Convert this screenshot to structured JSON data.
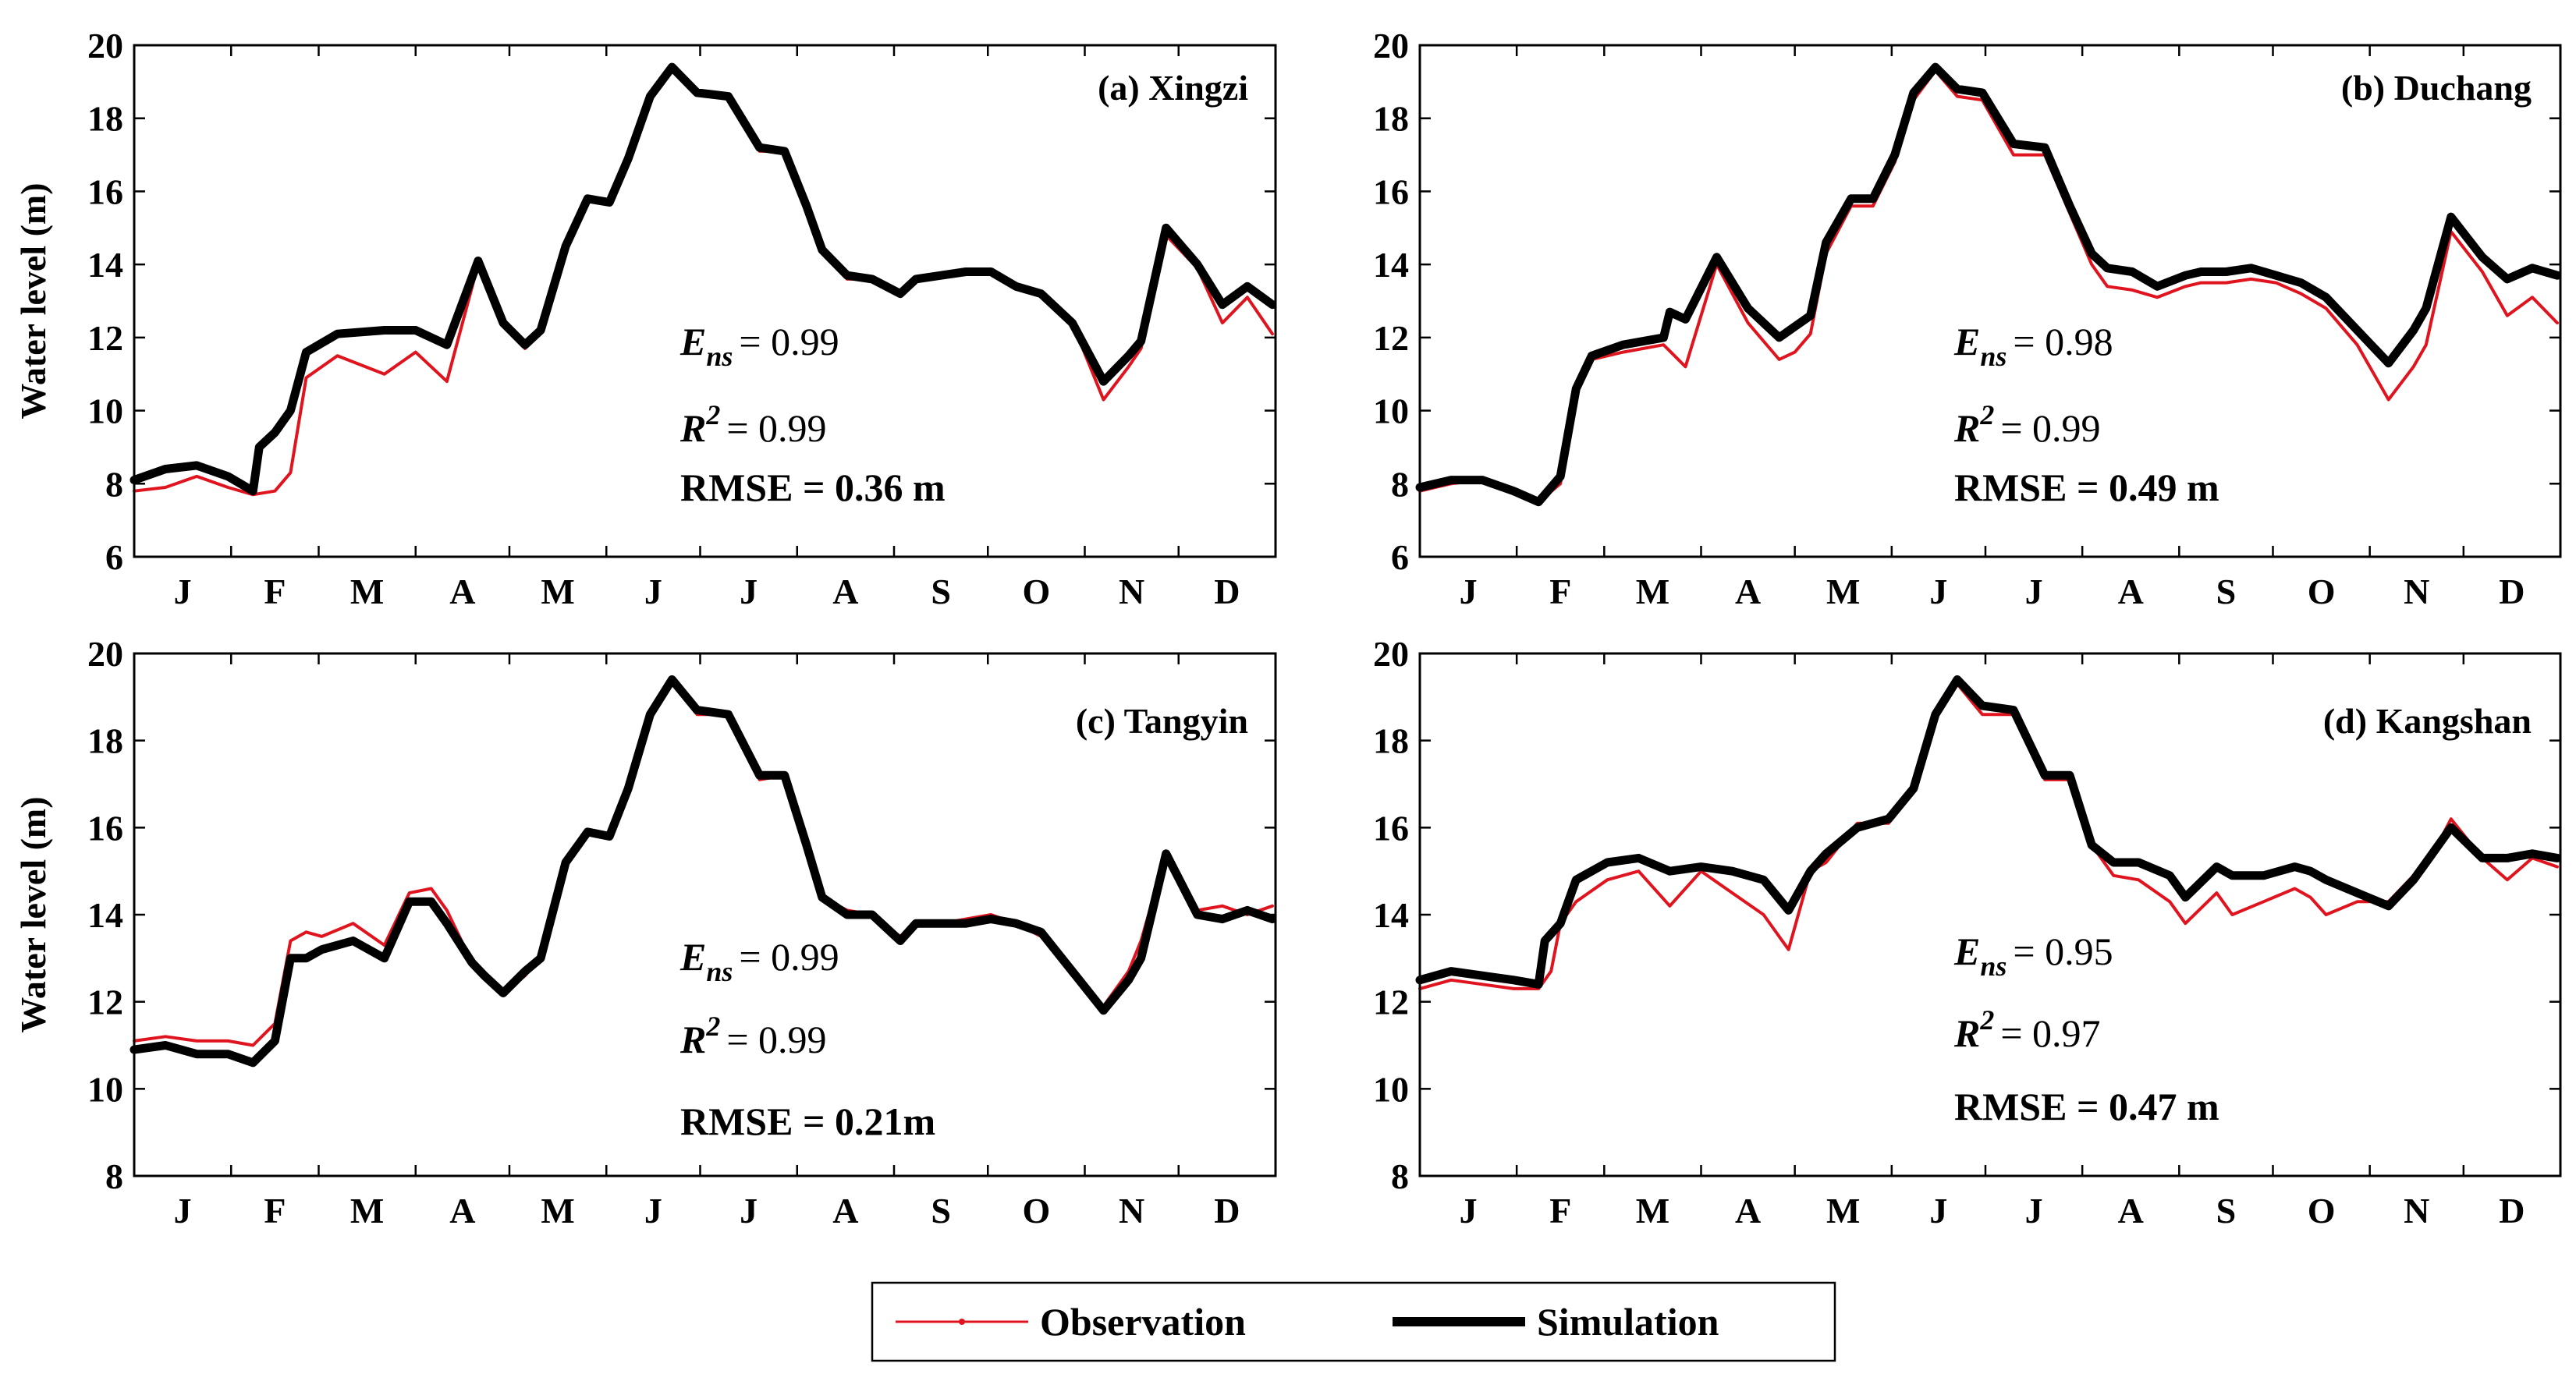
{
  "chart_data": [
    {
      "type": "line",
      "title": "(a) Xingzi",
      "ylabel": "Water level (m)",
      "ylim": [
        6,
        20
      ],
      "yticks": [
        6,
        8,
        10,
        12,
        14,
        16,
        18,
        20
      ],
      "months": [
        "J",
        "F",
        "M",
        "A",
        "M",
        "J",
        "J",
        "A",
        "S",
        "O",
        "N",
        "D"
      ],
      "stats": {
        "ens_symbol": "E",
        "ens_sub": "ns",
        "ens_value": "= 0.99",
        "r2_symbol": "R",
        "r2_sup": "2",
        "r2_value": "= 0.99",
        "rmse": "RMSE = 0.36 m"
      },
      "series": [
        {
          "name": "Observation",
          "day": [
            0,
            10,
            20,
            30,
            38,
            45,
            50,
            55,
            65,
            80,
            90,
            100,
            110,
            118,
            125,
            130,
            138,
            145,
            152,
            158,
            165,
            172,
            180,
            190,
            200,
            208,
            215,
            220,
            228,
            236,
            245,
            250,
            258,
            266,
            274,
            282,
            290,
            300,
            310,
            318,
            322,
            330,
            340,
            348,
            356,
            364
          ],
          "values": [
            7.8,
            7.9,
            8.2,
            7.9,
            7.7,
            7.8,
            8.3,
            10.9,
            11.5,
            11.0,
            11.6,
            10.8,
            14.0,
            12.5,
            11.7,
            12.2,
            14.5,
            15.8,
            15.7,
            16.9,
            18.6,
            19.4,
            18.7,
            18.6,
            17.1,
            17.1,
            15.6,
            14.4,
            13.6,
            13.6,
            13.2,
            13.6,
            13.7,
            13.8,
            13.8,
            13.4,
            13.2,
            12.4,
            10.3,
            11.2,
            11.7,
            14.8,
            13.9,
            12.4,
            13.1,
            12.1
          ]
        },
        {
          "name": "Simulation",
          "day": [
            0,
            10,
            20,
            30,
            38,
            40,
            45,
            50,
            55,
            65,
            80,
            90,
            100,
            110,
            118,
            125,
            130,
            138,
            145,
            152,
            158,
            165,
            172,
            180,
            190,
            200,
            208,
            215,
            220,
            228,
            236,
            245,
            250,
            258,
            266,
            274,
            282,
            290,
            300,
            310,
            318,
            322,
            330,
            340,
            348,
            356,
            364
          ],
          "values": [
            8.1,
            8.4,
            8.5,
            8.2,
            7.8,
            9.0,
            9.4,
            10.0,
            11.6,
            12.1,
            12.2,
            12.2,
            11.8,
            14.1,
            12.4,
            11.8,
            12.2,
            14.5,
            15.8,
            15.7,
            16.9,
            18.6,
            19.4,
            18.7,
            18.6,
            17.2,
            17.1,
            15.6,
            14.4,
            13.7,
            13.6,
            13.2,
            13.6,
            13.7,
            13.8,
            13.8,
            13.4,
            13.2,
            12.4,
            10.8,
            11.5,
            11.9,
            15.0,
            14.0,
            12.9,
            13.4,
            12.9
          ]
        }
      ]
    },
    {
      "type": "line",
      "title": "(b) Duchang",
      "ylabel": "",
      "ylim": [
        6,
        20
      ],
      "yticks": [
        6,
        8,
        10,
        12,
        14,
        16,
        18,
        20
      ],
      "months": [
        "J",
        "F",
        "M",
        "A",
        "M",
        "J",
        "J",
        "A",
        "S",
        "O",
        "N",
        "D"
      ],
      "stats": {
        "ens_symbol": "E",
        "ens_sub": "ns",
        "ens_value": "= 0.98",
        "r2_symbol": "R",
        "r2_sup": "2",
        "r2_value": "= 0.99",
        "rmse": "RMSE = 0.49 m"
      },
      "series": [
        {
          "name": "Observation",
          "day": [
            0,
            10,
            20,
            30,
            38,
            45,
            50,
            55,
            65,
            78,
            85,
            95,
            105,
            115,
            120,
            125,
            130,
            138,
            145,
            152,
            158,
            165,
            172,
            180,
            190,
            200,
            208,
            215,
            220,
            228,
            236,
            245,
            250,
            258,
            266,
            274,
            282,
            290,
            300,
            310,
            318,
            322,
            330,
            340,
            348,
            356,
            364
          ],
          "values": [
            7.8,
            8.0,
            8.1,
            7.8,
            7.5,
            8.0,
            10.5,
            11.4,
            11.6,
            11.8,
            11.2,
            14.0,
            12.4,
            11.4,
            11.6,
            12.1,
            14.3,
            15.6,
            15.6,
            16.8,
            18.5,
            19.3,
            18.6,
            18.5,
            17.0,
            17.0,
            15.4,
            14.0,
            13.4,
            13.3,
            13.1,
            13.4,
            13.5,
            13.5,
            13.6,
            13.5,
            13.2,
            12.8,
            11.8,
            10.3,
            11.2,
            11.8,
            14.9,
            13.8,
            12.6,
            13.1,
            12.4
          ]
        },
        {
          "name": "Simulation",
          "day": [
            0,
            10,
            20,
            30,
            38,
            45,
            50,
            55,
            65,
            78,
            80,
            85,
            95,
            105,
            115,
            120,
            125,
            130,
            138,
            145,
            152,
            158,
            165,
            172,
            180,
            190,
            200,
            208,
            215,
            220,
            228,
            236,
            245,
            250,
            258,
            266,
            274,
            282,
            290,
            300,
            310,
            318,
            322,
            330,
            340,
            348,
            356,
            364
          ],
          "values": [
            7.9,
            8.1,
            8.1,
            7.8,
            7.5,
            8.2,
            10.6,
            11.5,
            11.8,
            12.0,
            12.7,
            12.5,
            14.2,
            12.8,
            12.0,
            12.3,
            12.6,
            14.6,
            15.8,
            15.8,
            17.0,
            18.7,
            19.4,
            18.8,
            18.7,
            17.3,
            17.2,
            15.6,
            14.3,
            13.9,
            13.8,
            13.4,
            13.7,
            13.8,
            13.8,
            13.9,
            13.7,
            13.5,
            13.1,
            12.2,
            11.3,
            12.2,
            12.8,
            15.3,
            14.2,
            13.6,
            13.9,
            13.7
          ]
        }
      ]
    },
    {
      "type": "line",
      "title": "(c) Tangyin",
      "ylabel": "Water level (m)",
      "ylim": [
        8,
        20
      ],
      "yticks": [
        8,
        10,
        12,
        14,
        16,
        18,
        20
      ],
      "months": [
        "J",
        "F",
        "M",
        "A",
        "M",
        "J",
        "J",
        "A",
        "S",
        "O",
        "N",
        "D"
      ],
      "stats": {
        "ens_symbol": "E",
        "ens_sub": "ns",
        "ens_value": "= 0.99",
        "r2_symbol": "R",
        "r2_sup": "2",
        "r2_value": "= 0.99",
        "rmse": "RMSE = 0.21m"
      },
      "series": [
        {
          "name": "Observation",
          "day": [
            0,
            10,
            20,
            30,
            38,
            45,
            50,
            55,
            60,
            70,
            80,
            88,
            95,
            100,
            108,
            112,
            118,
            125,
            130,
            138,
            145,
            152,
            158,
            165,
            172,
            180,
            190,
            200,
            208,
            215,
            220,
            228,
            236,
            245,
            250,
            258,
            266,
            274,
            282,
            290,
            300,
            310,
            318,
            322,
            330,
            340,
            348,
            356,
            364
          ],
          "values": [
            11.1,
            11.2,
            11.1,
            11.1,
            11.0,
            11.5,
            13.4,
            13.6,
            13.5,
            13.8,
            13.3,
            14.5,
            14.6,
            14.1,
            12.9,
            12.6,
            12.2,
            12.6,
            13.0,
            15.3,
            15.9,
            15.8,
            16.9,
            18.6,
            19.4,
            18.6,
            18.6,
            17.1,
            17.2,
            15.6,
            14.4,
            14.1,
            14.0,
            13.5,
            13.8,
            13.8,
            13.9,
            14.0,
            13.8,
            13.5,
            12.6,
            11.9,
            12.7,
            13.4,
            15.4,
            14.1,
            14.2,
            14.0,
            14.2
          ]
        },
        {
          "name": "Simulation",
          "day": [
            0,
            10,
            20,
            30,
            38,
            45,
            50,
            55,
            60,
            70,
            80,
            88,
            95,
            100,
            108,
            112,
            118,
            125,
            130,
            138,
            145,
            152,
            158,
            165,
            172,
            180,
            190,
            200,
            208,
            215,
            220,
            228,
            236,
            245,
            250,
            258,
            266,
            274,
            282,
            290,
            300,
            310,
            318,
            322,
            330,
            340,
            348,
            356,
            364
          ],
          "values": [
            10.9,
            11.0,
            10.8,
            10.8,
            10.6,
            11.1,
            13.0,
            13.0,
            13.2,
            13.4,
            13.0,
            14.3,
            14.3,
            13.8,
            12.9,
            12.6,
            12.2,
            12.7,
            13.0,
            15.2,
            15.9,
            15.8,
            16.9,
            18.6,
            19.4,
            18.7,
            18.6,
            17.2,
            17.2,
            15.6,
            14.4,
            14.0,
            14.0,
            13.4,
            13.8,
            13.8,
            13.8,
            13.9,
            13.8,
            13.6,
            12.7,
            11.8,
            12.5,
            13.0,
            15.4,
            14.0,
            13.9,
            14.1,
            13.9
          ]
        }
      ]
    },
    {
      "type": "line",
      "title": "(d) Kangshan",
      "ylabel": "",
      "ylim": [
        8,
        20
      ],
      "yticks": [
        8,
        10,
        12,
        14,
        16,
        18,
        20
      ],
      "months": [
        "J",
        "F",
        "M",
        "A",
        "M",
        "J",
        "J",
        "A",
        "S",
        "O",
        "N",
        "D"
      ],
      "stats": {
        "ens_symbol": "E",
        "ens_sub": "ns",
        "ens_value": "= 0.95",
        "r2_symbol": "R",
        "r2_sup": "2",
        "r2_value": "= 0.97",
        "rmse": "RMSE = 0.47 m"
      },
      "series": [
        {
          "name": "Observation",
          "day": [
            0,
            10,
            20,
            30,
            38,
            42,
            45,
            50,
            60,
            70,
            80,
            90,
            100,
            110,
            118,
            125,
            130,
            140,
            150,
            158,
            165,
            172,
            180,
            190,
            200,
            208,
            215,
            222,
            230,
            240,
            245,
            255,
            260,
            270,
            280,
            285,
            290,
            300,
            310,
            318,
            322,
            330,
            340,
            348,
            356,
            364
          ],
          "values": [
            12.3,
            12.5,
            12.4,
            12.3,
            12.3,
            12.7,
            13.8,
            14.3,
            14.8,
            15.0,
            14.2,
            15.0,
            14.5,
            14.0,
            13.2,
            15.0,
            15.2,
            16.1,
            16.1,
            16.9,
            18.6,
            19.3,
            18.6,
            18.6,
            17.1,
            17.1,
            15.6,
            14.9,
            14.8,
            14.3,
            13.8,
            14.5,
            14.0,
            14.3,
            14.6,
            14.4,
            14.0,
            14.3,
            14.3,
            14.9,
            15.1,
            16.2,
            15.3,
            14.8,
            15.3,
            15.1
          ]
        },
        {
          "name": "Simulation",
          "day": [
            0,
            10,
            20,
            30,
            38,
            40,
            45,
            50,
            60,
            70,
            80,
            90,
            100,
            110,
            118,
            125,
            130,
            140,
            150,
            158,
            165,
            172,
            180,
            190,
            200,
            208,
            215,
            222,
            230,
            240,
            245,
            255,
            260,
            270,
            280,
            285,
            290,
            300,
            310,
            318,
            322,
            330,
            340,
            348,
            356,
            364
          ],
          "values": [
            12.5,
            12.7,
            12.6,
            12.5,
            12.4,
            13.4,
            13.8,
            14.8,
            15.2,
            15.3,
            15.0,
            15.1,
            15.0,
            14.8,
            14.1,
            15.0,
            15.4,
            16.0,
            16.2,
            16.9,
            18.6,
            19.4,
            18.8,
            18.7,
            17.2,
            17.2,
            15.6,
            15.2,
            15.2,
            14.9,
            14.4,
            15.1,
            14.9,
            14.9,
            15.1,
            15.0,
            14.8,
            14.5,
            14.2,
            14.8,
            15.2,
            16.0,
            15.3,
            15.3,
            15.4,
            15.3
          ]
        }
      ]
    }
  ],
  "legend": {
    "observation": "Observation",
    "simulation": "Simulation"
  },
  "colors": {
    "observation": "#e0141e",
    "simulation": "#000000"
  }
}
